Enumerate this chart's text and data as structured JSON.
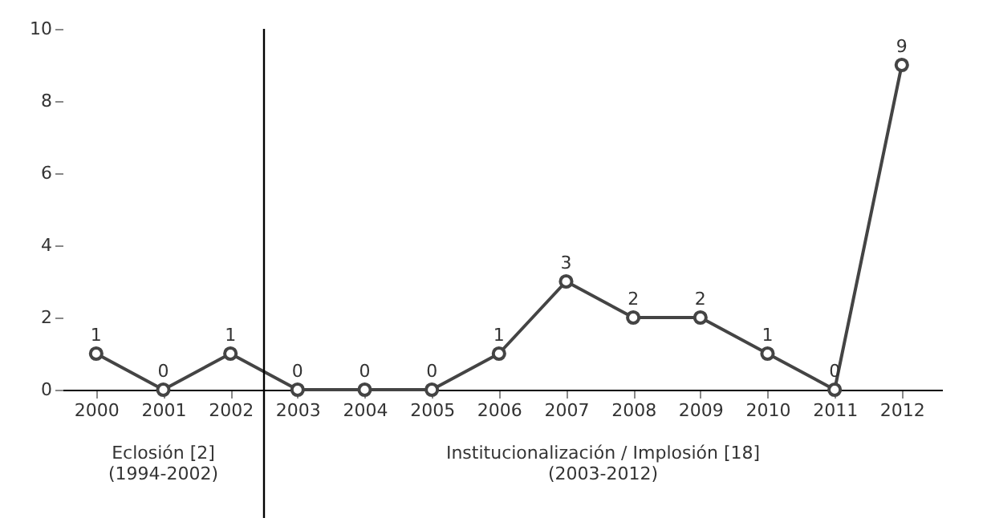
{
  "chart_data": {
    "type": "line",
    "x": [
      2000,
      2001,
      2002,
      2003,
      2004,
      2005,
      2006,
      2007,
      2008,
      2009,
      2010,
      2011,
      2012
    ],
    "series": [
      {
        "color": "#444444",
        "values": [
          1,
          0,
          1,
          0,
          0,
          0,
          1,
          3,
          2,
          2,
          1,
          0,
          9
        ]
      }
    ],
    "xlim": [
      1999.5,
      2012.6
    ],
    "xticks": [
      2000,
      2001,
      2002,
      2003,
      2004,
      2005,
      2006,
      2007,
      2008,
      2009,
      2010,
      2011,
      2012
    ],
    "ylim": [
      0,
      10
    ],
    "yticks": [
      0,
      2,
      4,
      6,
      8,
      10
    ],
    "ref_lines": [
      {
        "axis": "x",
        "value": 2002.5,
        "color": "#000000"
      }
    ],
    "annotations": [
      "Eclosión [2]\n(1994-2002)",
      "Institucionalización / Implosión [18]\n(2003-2012)"
    ],
    "data_labels": true,
    "marker": "circle",
    "line_style": "solid",
    "grid": false
  }
}
